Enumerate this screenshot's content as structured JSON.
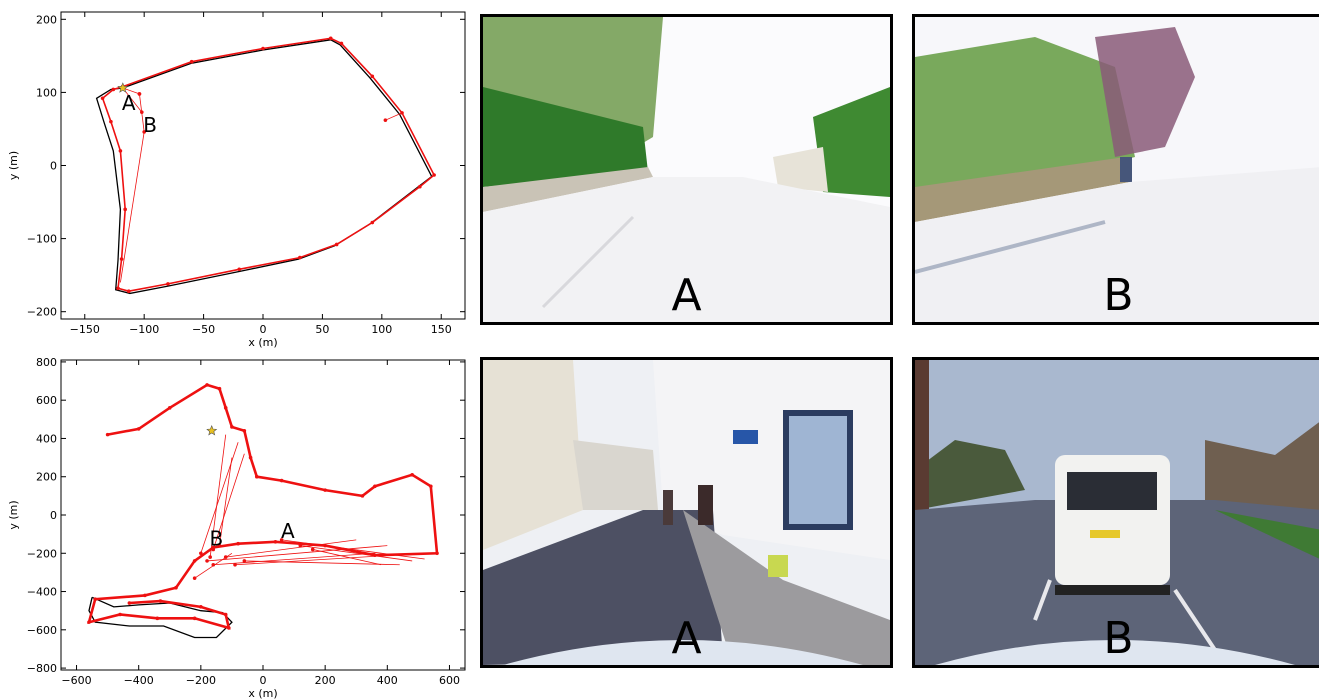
{
  "chart_data": [
    {
      "type": "scatter",
      "xlabel": "x (m)",
      "ylabel": "y (m)",
      "xlim": [
        -170,
        170
      ],
      "ylim": [
        -210,
        210
      ],
      "xticks": [
        -150,
        -100,
        -50,
        0,
        50,
        100,
        150
      ],
      "yticks": [
        -200,
        -100,
        0,
        100,
        200
      ],
      "grid": false,
      "series": [
        {
          "kind": "ground-truth-line",
          "color": "#000000",
          "points": [
            [
              -118,
              106
            ],
            [
              -60,
              140
            ],
            [
              0,
              158
            ],
            [
              57,
              172
            ],
            [
              65,
              165
            ],
            [
              90,
              120
            ],
            [
              115,
              70
            ],
            [
              142,
              -15
            ],
            [
              130,
              -30
            ],
            [
              90,
              -80
            ],
            [
              60,
              -110
            ],
            [
              30,
              -128
            ],
            [
              -20,
              -145
            ],
            [
              -80,
              -165
            ],
            [
              -112,
              -175
            ],
            [
              -124,
              -170
            ],
            [
              -122,
              -130
            ],
            [
              -120,
              -60
            ],
            [
              -126,
              20
            ],
            [
              -134,
              60
            ],
            [
              -140,
              92
            ],
            [
              -128,
              104
            ],
            [
              -118,
              106
            ]
          ]
        },
        {
          "kind": "estimated-trajectory",
          "color": "#ee1111",
          "points": [
            [
              -118,
              108
            ],
            [
              -60,
              142
            ],
            [
              0,
              160
            ],
            [
              57,
              174
            ],
            [
              66,
              167
            ],
            [
              92,
              122
            ],
            [
              117,
              72
            ],
            [
              144,
              -13
            ],
            [
              132,
              -29
            ],
            [
              92,
              -78
            ],
            [
              62,
              -108
            ],
            [
              31,
              -126
            ],
            [
              -20,
              -142
            ],
            [
              -80,
              -162
            ],
            [
              -113,
              -172
            ],
            [
              -122,
              -168
            ],
            [
              -119,
              -128
            ],
            [
              -116,
              -60
            ],
            [
              -120,
              20
            ],
            [
              -128,
              60
            ],
            [
              -135,
              92
            ],
            [
              -126,
              104
            ],
            [
              -118,
              108
            ]
          ]
        },
        {
          "kind": "loop-closure-links",
          "color": "#ee1111",
          "segments": [
            [
              [
                -102,
                73
              ],
              [
                -118,
                106
              ]
            ],
            [
              [
                -100,
                46
              ],
              [
                -120,
                -160
              ]
            ],
            [
              [
                -104,
                98
              ],
              [
                -100,
                46
              ]
            ],
            [
              [
                -104,
                98
              ],
              [
                -118,
                106
              ]
            ],
            [
              [
                103,
                62
              ],
              [
                117,
                72
              ]
            ]
          ]
        }
      ],
      "start_marker": [
        -118,
        106
      ],
      "annotations": [
        {
          "text": "A",
          "x": -113,
          "y": 76
        },
        {
          "text": "B",
          "x": -95,
          "y": 46
        }
      ]
    },
    {
      "type": "scatter",
      "xlabel": "x (m)",
      "ylabel": "y (m)",
      "xlim": [
        -650,
        650
      ],
      "ylim": [
        -810,
        810
      ],
      "xticks": [
        -600,
        -400,
        -200,
        0,
        200,
        400,
        600
      ],
      "yticks": [
        -800,
        -600,
        -400,
        -200,
        0,
        200,
        400,
        600,
        800
      ],
      "grid": false,
      "series": [
        {
          "kind": "ground-truth-line",
          "color": "#000000",
          "points": [
            [
              -550,
              -430
            ],
            [
              -480,
              -480
            ],
            [
              -400,
              -470
            ],
            [
              -300,
              -460
            ],
            [
              -200,
              -500
            ],
            [
              -130,
              -510
            ],
            [
              -100,
              -560
            ],
            [
              -150,
              -640
            ],
            [
              -220,
              -640
            ],
            [
              -320,
              -580
            ],
            [
              -430,
              -580
            ],
            [
              -540,
              -560
            ],
            [
              -560,
              -500
            ],
            [
              -550,
              -430
            ]
          ]
        },
        {
          "kind": "estimated-trajectory",
          "color": "#ee1111",
          "points": [
            [
              -500,
              420
            ],
            [
              -400,
              450
            ],
            [
              -300,
              560
            ],
            [
              -180,
              680
            ],
            [
              -140,
              660
            ],
            [
              -120,
              560
            ],
            [
              -100,
              460
            ],
            [
              -60,
              440
            ],
            [
              -40,
              300
            ],
            [
              -20,
              200
            ],
            [
              60,
              180
            ],
            [
              200,
              130
            ],
            [
              320,
              100
            ],
            [
              360,
              150
            ],
            [
              480,
              210
            ],
            [
              540,
              150
            ],
            [
              560,
              -200
            ],
            [
              360,
              -210
            ],
            [
              200,
              -160
            ],
            [
              40,
              -140
            ],
            [
              -80,
              -150
            ],
            [
              -160,
              -170
            ],
            [
              -220,
              -240
            ],
            [
              -280,
              -380
            ],
            [
              -380,
              -420
            ],
            [
              -540,
              -440
            ],
            [
              -560,
              -560
            ],
            [
              -460,
              -520
            ],
            [
              -340,
              -540
            ],
            [
              -220,
              -540
            ],
            [
              -110,
              -590
            ],
            [
              -120,
              -520
            ],
            [
              -200,
              -480
            ],
            [
              -330,
              -450
            ],
            [
              -430,
              -460
            ]
          ]
        },
        {
          "kind": "loop-closure-links",
          "color": "#ee1111",
          "segments": [
            [
              [
                -170,
                -220
              ],
              [
                -120,
                420
              ]
            ],
            [
              [
                -200,
                -200
              ],
              [
                -80,
                380
              ]
            ],
            [
              [
                -160,
                -180
              ],
              [
                -60,
                320
              ]
            ],
            [
              [
                -140,
                -160
              ],
              [
                -100,
                300
              ]
            ],
            [
              [
                -180,
                -240
              ],
              [
                400,
                -160
              ]
            ],
            [
              [
                -160,
                -260
              ],
              [
                360,
                -200
              ]
            ],
            [
              [
                -120,
                -220
              ],
              [
                300,
                -130
              ]
            ],
            [
              [
                -90,
                -260
              ],
              [
                520,
                -200
              ]
            ],
            [
              [
                -60,
                -240
              ],
              [
                440,
                -260
              ]
            ],
            [
              [
                60,
                -130
              ],
              [
                520,
                -230
              ]
            ],
            [
              [
                120,
                -160
              ],
              [
                480,
                -240
              ]
            ],
            [
              [
                160,
                -180
              ],
              [
                380,
                -260
              ]
            ],
            [
              [
                -220,
                -330
              ],
              [
                -100,
                -200
              ]
            ]
          ]
        }
      ],
      "start_marker": [
        -165,
        440
      ],
      "annotations": [
        {
          "text": "A",
          "x": 80,
          "y": -120
        },
        {
          "text": "B",
          "x": -150,
          "y": -160
        }
      ]
    }
  ],
  "panels": [
    {
      "letter": "A",
      "scene": "sunny-road-hedge"
    },
    {
      "letter": "B",
      "scene": "sunny-road-wall"
    },
    {
      "letter": "A",
      "scene": "street-buildings"
    },
    {
      "letter": "B",
      "scene": "street-van"
    }
  ],
  "colors": {
    "accent": "#ee1111",
    "truth": "#000000",
    "start": "#e8c020"
  }
}
